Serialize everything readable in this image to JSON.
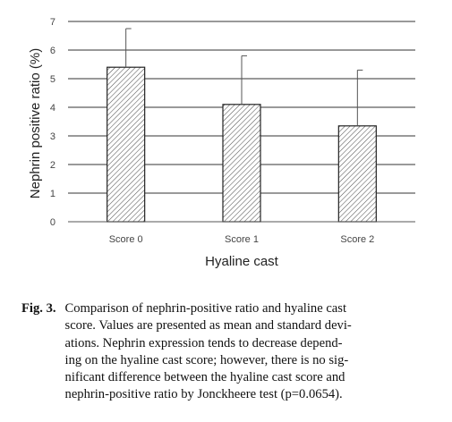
{
  "chart_data": {
    "type": "bar",
    "categories": [
      "Score 0",
      "Score 1",
      "Score 2"
    ],
    "values": [
      5.4,
      4.1,
      3.35
    ],
    "error_sd": [
      1.35,
      1.7,
      1.95
    ],
    "xlabel": "Hyaline cast",
    "ylabel": "Nephrin positive ratio (%)",
    "ylim": [
      0,
      7
    ],
    "yticks": [
      "0",
      "1",
      "2",
      "3",
      "4",
      "5",
      "6",
      "7"
    ],
    "grid": true,
    "bar_fill": "hatched"
  },
  "caption": {
    "label": "Fig. 3.",
    "lines": [
      "Comparison of nephrin-positive ratio and hyaline cast",
      "score. Values are presented as mean and standard devi-",
      "ations. Nephrin expression tends to decrease depend-",
      "ing on the hyaline cast score; however, there is no sig-",
      "nificant difference between the hyaline cast score and",
      "nephrin-positive ratio by Jonckheere test (p=0.0654)."
    ]
  }
}
